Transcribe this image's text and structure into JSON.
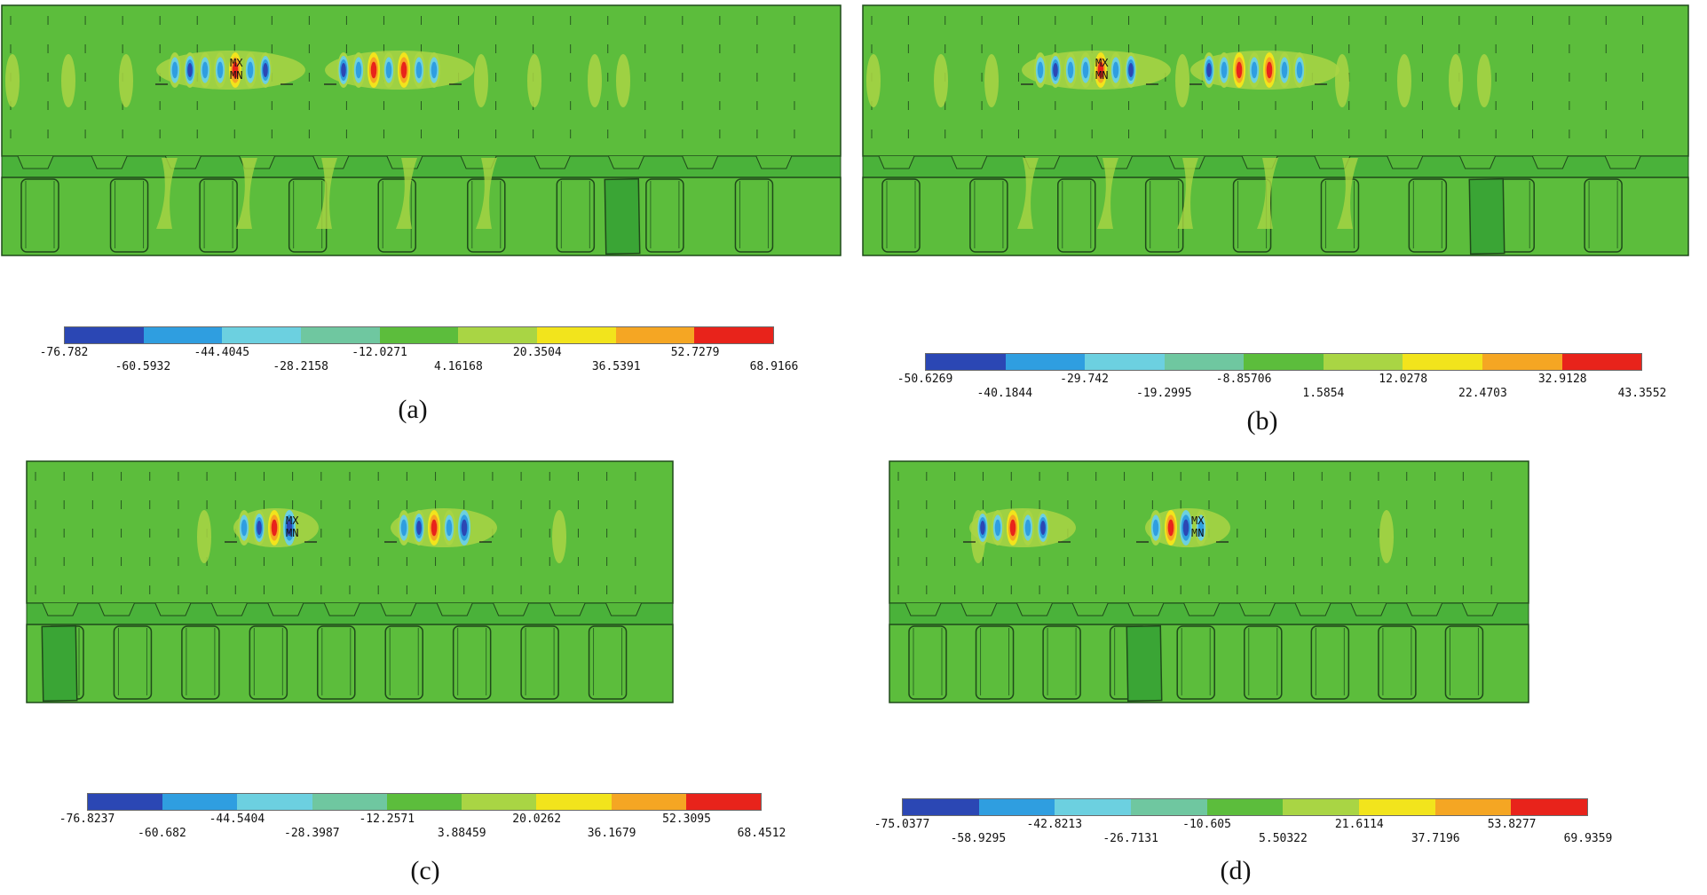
{
  "colors": {
    "model_green": "#5cbd3c",
    "band_green": "#4ab23a",
    "edge": "#1f4a1a",
    "legend": [
      "#2b47b4",
      "#2f9ee0",
      "#6cd0e0",
      "#6fc7a0",
      "#5cbd3c",
      "#a9d544",
      "#f2e41c",
      "#f5a623",
      "#e8231b"
    ]
  },
  "panels": [
    {
      "caption": "(a)",
      "marker_max": "MX",
      "marker_min": "MN",
      "legend_ticks": [
        "-76.782",
        "-60.5932",
        "-44.4045",
        "-28.2158",
        "-12.0271",
        "4.16168",
        "20.3504",
        "36.5391",
        "52.7279",
        "68.9166"
      ]
    },
    {
      "caption": "(b)",
      "marker_max": "MX",
      "marker_min": "MN",
      "legend_ticks": [
        "-50.6269",
        "-40.1844",
        "-29.742",
        "-19.2995",
        "-8.85706",
        "1.5854",
        "12.0278",
        "22.4703",
        "32.9128",
        "43.3552"
      ]
    },
    {
      "caption": "(c)",
      "marker_max": "MX",
      "marker_min": "MN",
      "legend_ticks": [
        "-76.8237",
        "-60.682",
        "-44.5404",
        "-28.3987",
        "-12.2571",
        "3.88459",
        "20.0262",
        "36.1679",
        "52.3095",
        "68.4512"
      ]
    },
    {
      "caption": "(d)",
      "marker_max": "MX",
      "marker_min": "MN",
      "legend_ticks": [
        "-75.0377",
        "-58.9295",
        "-42.8213",
        "-26.7131",
        "-10.605",
        "5.50322",
        "21.6114",
        "37.7196",
        "53.8277",
        "69.9359"
      ]
    }
  ]
}
